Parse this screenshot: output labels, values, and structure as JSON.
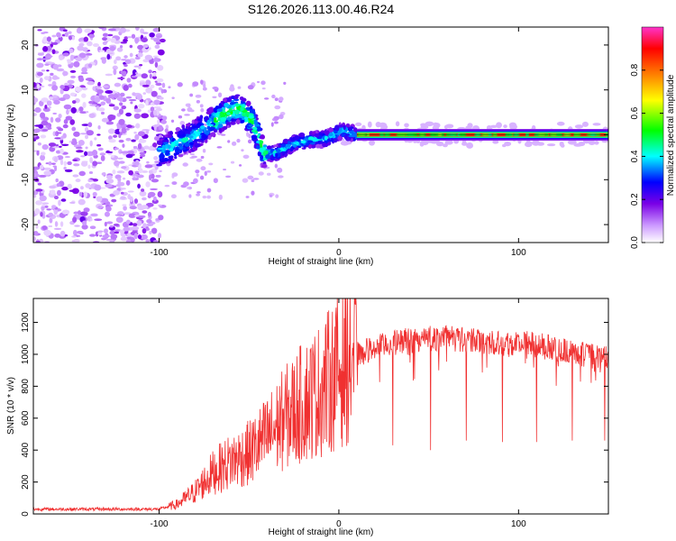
{
  "title": "S126.2026.113.00.46.R24",
  "chart_data": [
    {
      "type": "heatmap",
      "xlabel": "Height of straight line (km)",
      "ylabel": "Frequency (Hz)",
      "xlim": [
        -170,
        150
      ],
      "ylim": [
        -24,
        24
      ],
      "xticks": [
        -100,
        0,
        100
      ],
      "xtick_labels": [
        "-100",
        "0",
        "100"
      ],
      "yticks": [
        -20,
        -10,
        0,
        10,
        20
      ],
      "ytick_labels": [
        "-20",
        "-10",
        "0",
        "10",
        "20"
      ],
      "colorbar": {
        "label": "Normalized spectral amplitude",
        "range": [
          0,
          1
        ],
        "ticks": [
          0.0,
          0.2,
          0.4,
          0.6,
          0.8
        ],
        "tick_labels": [
          "0.0",
          "0.2",
          "0.4",
          "0.6",
          "0.8"
        ],
        "colors": [
          "#ffffff",
          "#cc99ff",
          "#7a00e6",
          "#0000ff",
          "#00ffff",
          "#00ff00",
          "#ffff00",
          "#ff7f00",
          "#ff0000",
          "#ff33cc"
        ]
      },
      "ridge": {
        "x": [
          -100,
          -90,
          -80,
          -70,
          -62,
          -55,
          -48,
          -42,
          -35,
          -25,
          -15,
          -8,
          -3,
          2,
          10,
          150
        ],
        "freq": [
          -4,
          -2,
          0,
          3,
          5,
          6,
          3,
          -4,
          -4,
          -2,
          -1,
          -1,
          0,
          1,
          0,
          0
        ]
      }
    },
    {
      "type": "line",
      "xlabel": "Height of straight line (km)",
      "ylabel": "SNR (10 * v/v)",
      "xlim": [
        -170,
        150
      ],
      "ylim": [
        0,
        1350
      ],
      "xticks": [
        -100,
        0,
        100
      ],
      "xtick_labels": [
        "-100",
        "0",
        "100"
      ],
      "yticks": [
        0,
        200,
        400,
        600,
        800,
        1000,
        1200
      ],
      "ytick_labels": [
        "0",
        "200",
        "400",
        "600",
        "800",
        "1000",
        "1200"
      ],
      "color": "#f03030",
      "envelope": {
        "x": [
          -170,
          -100,
          -90,
          -80,
          -70,
          -60,
          -50,
          -40,
          -30,
          -20,
          -10,
          0,
          10,
          20,
          30,
          40,
          50,
          60,
          70,
          80,
          90,
          100,
          110,
          120,
          130,
          140,
          150
        ],
        "y": [
          30,
          30,
          60,
          140,
          260,
          330,
          380,
          480,
          600,
          700,
          780,
          900,
          1000,
          1040,
          1070,
          1090,
          1100,
          1100,
          1090,
          1080,
          1075,
          1070,
          1060,
          1040,
          1010,
          990,
          970
        ]
      },
      "dips": [
        {
          "x": 30,
          "y": 430
        },
        {
          "x": 51,
          "y": 400
        },
        {
          "x": 71,
          "y": 460
        },
        {
          "x": 91,
          "y": 450
        },
        {
          "x": 110,
          "y": 450
        },
        {
          "x": 130,
          "y": 460
        },
        {
          "x": 148,
          "y": 460
        }
      ]
    }
  ]
}
